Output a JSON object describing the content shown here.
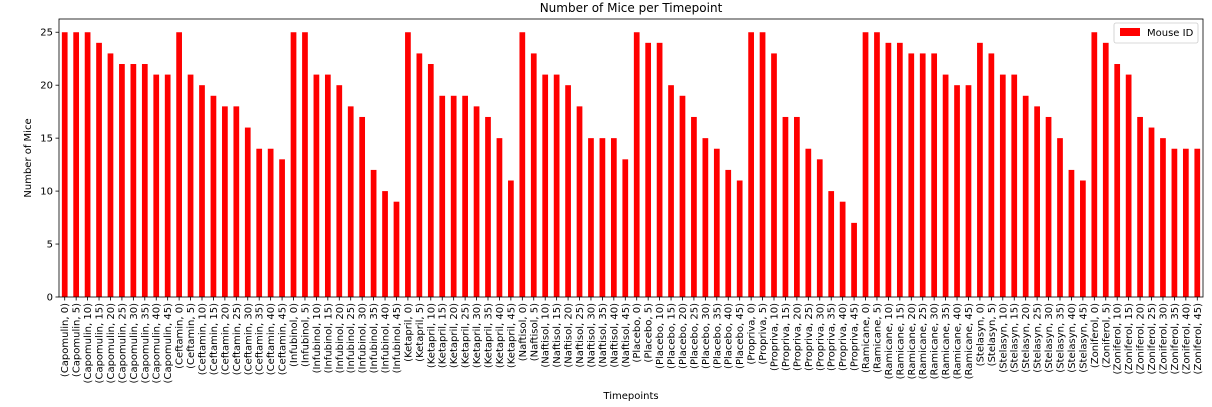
{
  "chart_data": {
    "type": "bar",
    "title": "Number of Mice per Timepoint",
    "xlabel": "Timepoints",
    "ylabel": "Number of Mice",
    "ylim": [
      0,
      26.25
    ],
    "yticks": [
      0,
      5,
      10,
      15,
      20,
      25
    ],
    "grid": false,
    "legend_position": "top-right",
    "bar_color": "#ff0000",
    "categories": [
      "(Capomulin, 0)",
      "(Capomulin, 5)",
      "(Capomulin, 10)",
      "(Capomulin, 15)",
      "(Capomulin, 20)",
      "(Capomulin, 25)",
      "(Capomulin, 30)",
      "(Capomulin, 35)",
      "(Capomulin, 40)",
      "(Capomulin, 45)",
      "(Ceftamin, 0)",
      "(Ceftamin, 5)",
      "(Ceftamin, 10)",
      "(Ceftamin, 15)",
      "(Ceftamin, 20)",
      "(Ceftamin, 25)",
      "(Ceftamin, 30)",
      "(Ceftamin, 35)",
      "(Ceftamin, 40)",
      "(Ceftamin, 45)",
      "(Infubinol, 0)",
      "(Infubinol, 5)",
      "(Infubinol, 10)",
      "(Infubinol, 15)",
      "(Infubinol, 20)",
      "(Infubinol, 25)",
      "(Infubinol, 30)",
      "(Infubinol, 35)",
      "(Infubinol, 40)",
      "(Infubinol, 45)",
      "(Ketapril, 0)",
      "(Ketapril, 5)",
      "(Ketapril, 10)",
      "(Ketapril, 15)",
      "(Ketapril, 20)",
      "(Ketapril, 25)",
      "(Ketapril, 30)",
      "(Ketapril, 35)",
      "(Ketapril, 40)",
      "(Ketapril, 45)",
      "(Naftisol, 0)",
      "(Naftisol, 5)",
      "(Naftisol, 10)",
      "(Naftisol, 15)",
      "(Naftisol, 20)",
      "(Naftisol, 25)",
      "(Naftisol, 30)",
      "(Naftisol, 35)",
      "(Naftisol, 40)",
      "(Naftisol, 45)",
      "(Placebo, 0)",
      "(Placebo, 5)",
      "(Placebo, 10)",
      "(Placebo, 15)",
      "(Placebo, 20)",
      "(Placebo, 25)",
      "(Placebo, 30)",
      "(Placebo, 35)",
      "(Placebo, 40)",
      "(Placebo, 45)",
      "(Propriva, 0)",
      "(Propriva, 5)",
      "(Propriva, 10)",
      "(Propriva, 15)",
      "(Propriva, 20)",
      "(Propriva, 25)",
      "(Propriva, 30)",
      "(Propriva, 35)",
      "(Propriva, 40)",
      "(Propriva, 45)",
      "(Ramicane, 0)",
      "(Ramicane, 5)",
      "(Ramicane, 10)",
      "(Ramicane, 15)",
      "(Ramicane, 20)",
      "(Ramicane, 25)",
      "(Ramicane, 30)",
      "(Ramicane, 35)",
      "(Ramicane, 40)",
      "(Ramicane, 45)",
      "(Stelasyn, 0)",
      "(Stelasyn, 5)",
      "(Stelasyn, 10)",
      "(Stelasyn, 15)",
      "(Stelasyn, 20)",
      "(Stelasyn, 25)",
      "(Stelasyn, 30)",
      "(Stelasyn, 35)",
      "(Stelasyn, 40)",
      "(Stelasyn, 45)",
      "(Zoniferol, 0)",
      "(Zoniferol, 5)",
      "(Zoniferol, 10)",
      "(Zoniferol, 15)",
      "(Zoniferol, 20)",
      "(Zoniferol, 25)",
      "(Zoniferol, 30)",
      "(Zoniferol, 35)",
      "(Zoniferol, 40)",
      "(Zoniferol, 45)"
    ],
    "series": [
      {
        "name": "Mouse ID",
        "color": "#ff0000",
        "values": [
          25,
          25,
          25,
          24,
          23,
          22,
          22,
          22,
          21,
          21,
          25,
          21,
          20,
          19,
          18,
          18,
          16,
          14,
          14,
          13,
          25,
          25,
          21,
          21,
          20,
          18,
          17,
          12,
          10,
          9,
          25,
          23,
          22,
          19,
          19,
          19,
          18,
          17,
          15,
          11,
          25,
          23,
          21,
          21,
          20,
          18,
          15,
          15,
          15,
          13,
          25,
          24,
          24,
          20,
          19,
          17,
          15,
          14,
          12,
          11,
          25,
          25,
          23,
          17,
          17,
          14,
          13,
          10,
          9,
          7,
          25,
          25,
          24,
          24,
          23,
          23,
          23,
          21,
          20,
          20,
          24,
          23,
          21,
          21,
          19,
          18,
          17,
          15,
          12,
          11,
          25,
          24,
          22,
          21,
          17,
          16,
          15,
          14,
          14,
          14
        ]
      }
    ]
  }
}
